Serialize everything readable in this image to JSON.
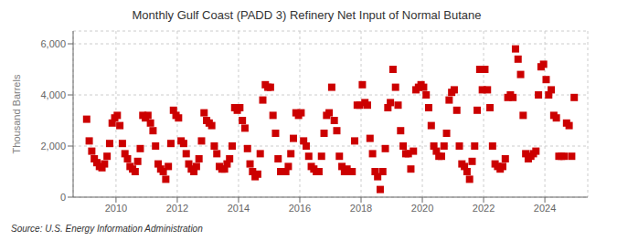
{
  "chart_data": {
    "type": "scatter",
    "title": "Monthly Gulf Coast (PADD 3) Refinery Net Input of Normal Butane",
    "y_label": "Thousand Barrels",
    "annotations": [
      "Source: U.S. Energy Information Administration"
    ],
    "color": "#cc0000",
    "marker": "square",
    "grid": true,
    "xlim": [
      2008.6,
      2025.4
    ],
    "xticks": [
      2010,
      2012,
      2014,
      2016,
      2018,
      2020,
      2022,
      2024
    ],
    "ylim": [
      0,
      6500
    ],
    "yticks": [
      0,
      {
        "value": 2000,
        "label": "2,000"
      },
      {
        "value": 4000,
        "label": "4,000"
      },
      {
        "value": 6000,
        "label": "6,000"
      }
    ],
    "x": [
      2009.041666666667,
      2009.125,
      2009.208333333333,
      2009.291666666667,
      2009.375,
      2009.458333333333,
      2009.541666666667,
      2009.625,
      2009.708333333333,
      2009.791666666667,
      2009.875,
      2009.958333333333,
      2010.041666666667,
      2010.125,
      2010.208333333333,
      2010.291666666667,
      2010.375,
      2010.458333333333,
      2010.541666666667,
      2010.625,
      2010.708333333333,
      2010.791666666667,
      2010.875,
      2010.958333333333,
      2011.041666666667,
      2011.125,
      2011.208333333333,
      2011.291666666667,
      2011.375,
      2011.458333333333,
      2011.541666666667,
      2011.625,
      2011.708333333333,
      2011.791666666667,
      2011.875,
      2011.958333333333,
      2012.041666666667,
      2012.125,
      2012.208333333333,
      2012.291666666667,
      2012.375,
      2012.458333333333,
      2012.541666666667,
      2012.625,
      2012.708333333333,
      2012.791666666667,
      2012.875,
      2012.958333333333,
      2013.041666666667,
      2013.125,
      2013.208333333333,
      2013.291666666667,
      2013.375,
      2013.458333333333,
      2013.541666666667,
      2013.625,
      2013.708333333333,
      2013.791666666667,
      2013.875,
      2013.958333333333,
      2014.041666666667,
      2014.125,
      2014.208333333333,
      2014.291666666667,
      2014.375,
      2014.458333333333,
      2014.541666666667,
      2014.625,
      2014.708333333333,
      2014.791666666667,
      2014.875,
      2014.958333333333,
      2015.041666666667,
      2015.125,
      2015.208333333333,
      2015.291666666667,
      2015.375,
      2015.458333333333,
      2015.541666666667,
      2015.625,
      2015.708333333333,
      2015.791666666667,
      2015.875,
      2015.958333333333,
      2016.041666666667,
      2016.125,
      2016.208333333333,
      2016.291666666667,
      2016.375,
      2016.458333333333,
      2016.541666666667,
      2016.625,
      2016.708333333333,
      2016.791666666667,
      2016.875,
      2016.958333333333,
      2017.041666666667,
      2017.125,
      2017.208333333333,
      2017.291666666667,
      2017.375,
      2017.458333333333,
      2017.541666666667,
      2017.625,
      2017.708333333333,
      2017.791666666667,
      2017.875,
      2017.958333333333,
      2018.041666666667,
      2018.125,
      2018.208333333333,
      2018.291666666667,
      2018.375,
      2018.458333333333,
      2018.541666666667,
      2018.625,
      2018.708333333333,
      2018.791666666667,
      2018.875,
      2018.958333333333,
      2019.041666666667,
      2019.125,
      2019.208333333333,
      2019.291666666667,
      2019.375,
      2019.458333333333,
      2019.541666666667,
      2019.625,
      2019.708333333333,
      2019.791666666667,
      2019.875,
      2019.958333333333,
      2020.041666666667,
      2020.125,
      2020.208333333333,
      2020.291666666667,
      2020.375,
      2020.458333333333,
      2020.541666666667,
      2020.625,
      2020.708333333333,
      2020.791666666667,
      2020.875,
      2020.958333333333,
      2021.041666666667,
      2021.125,
      2021.208333333333,
      2021.291666666667,
      2021.375,
      2021.458333333333,
      2021.541666666667,
      2021.625,
      2021.708333333333,
      2021.791666666667,
      2021.875,
      2021.958333333333,
      2022.041666666667,
      2022.125,
      2022.208333333333,
      2022.291666666667,
      2022.375,
      2022.458333333333,
      2022.541666666667,
      2022.625,
      2022.708333333333,
      2022.791666666667,
      2022.875,
      2022.958333333333,
      2023.041666666667,
      2023.125,
      2023.208333333333,
      2023.291666666667,
      2023.375,
      2023.458333333333,
      2023.541666666667,
      2023.625,
      2023.708333333333,
      2023.791666666667,
      2023.875,
      2023.958333333333,
      2024.041666666667,
      2024.125,
      2024.208333333333,
      2024.291666666667,
      2024.375,
      2024.458333333333,
      2024.541666666667,
      2024.625,
      2024.708333333333,
      2024.791666666667,
      2024.875,
      2024.958333333333
    ],
    "values": [
      3050,
      2200,
      1800,
      1500,
      1350,
      1200,
      1150,
      1300,
      1600,
      2100,
      2900,
      3100,
      3200,
      2800,
      2100,
      1700,
      1500,
      1200,
      1100,
      1000,
      1400,
      1900,
      3200,
      3100,
      3200,
      2900,
      2600,
      2000,
      1300,
      1100,
      1000,
      700,
      1200,
      2100,
      3400,
      3200,
      3100,
      2200,
      2100,
      1700,
      1300,
      1100,
      1000,
      1200,
      1500,
      2200,
      3300,
      3000,
      2900,
      2800,
      2000,
      1700,
      1200,
      1100,
      1100,
      1300,
      1500,
      2000,
      3500,
      3400,
      3500,
      3000,
      2700,
      1900,
      1300,
      1000,
      800,
      900,
      1700,
      3800,
      4400,
      4300,
      4300,
      3200,
      2500,
      1500,
      1000,
      1000,
      1000,
      1200,
      1700,
      2300,
      3300,
      3200,
      3300,
      2200,
      2000,
      1600,
      1200,
      1100,
      1000,
      1000,
      1600,
      2500,
      3200,
      3300,
      4300,
      3000,
      2600,
      1600,
      1200,
      1000,
      1100,
      1000,
      1000,
      2200,
      3600,
      3600,
      4400,
      3700,
      3600,
      2300,
      1700,
      1000,
      800,
      300,
      1000,
      1900,
      3500,
      3700,
      5000,
      4300,
      3600,
      2600,
      2000,
      1700,
      1700,
      1100,
      1800,
      4200,
      4300,
      4400,
      4300,
      4000,
      3500,
      2800,
      2000,
      1800,
      1600,
      1600,
      2000,
      2500,
      3800,
      4100,
      4200,
      3400,
      2000,
      1300,
      1200,
      1000,
      700,
      1400,
      2000,
      3400,
      5000,
      4200,
      5000,
      4200,
      3500,
      2000,
      1300,
      1200,
      1100,
      1200,
      1500,
      3900,
      4000,
      3900,
      5800,
      5400,
      4800,
      3200,
      1700,
      1500,
      1600,
      1700,
      1800,
      4000,
      5100,
      5200,
      4600,
      4000,
      4200,
      3200,
      3100,
      1600,
      1600,
      1600,
      2900,
      2800,
      1600,
      3900
    ]
  }
}
